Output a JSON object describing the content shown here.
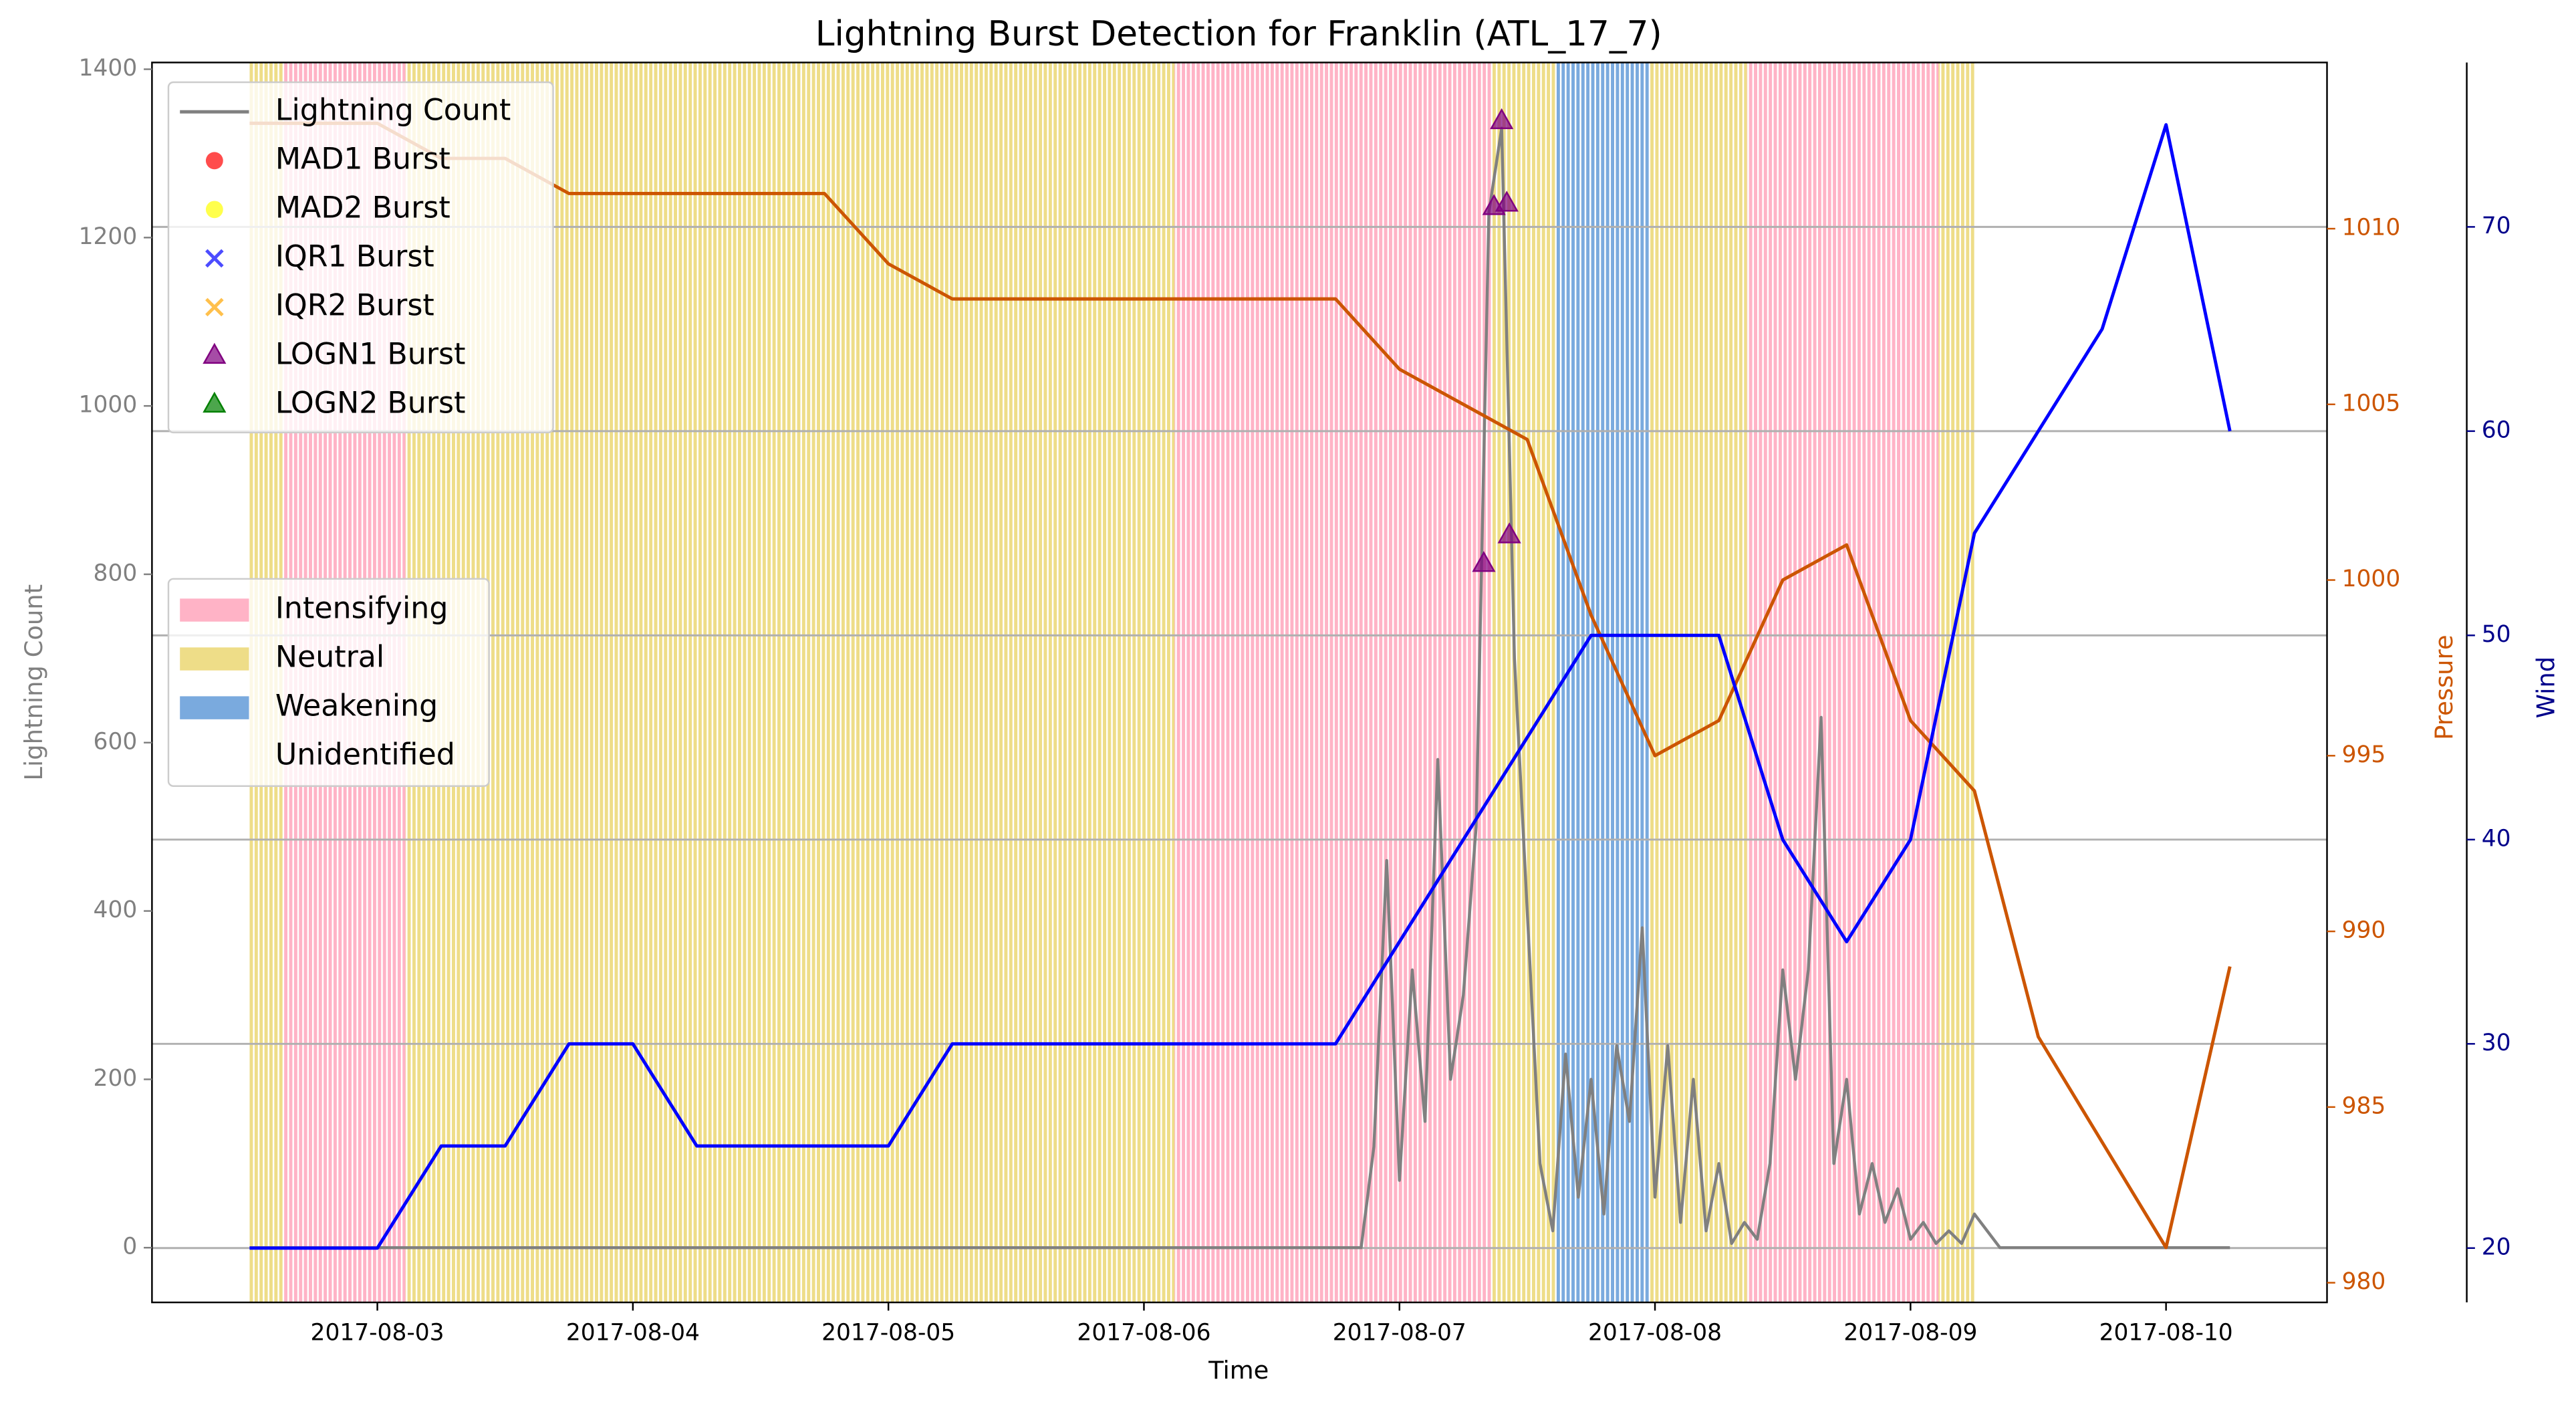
{
  "chart_data": {
    "type": "line",
    "title": "Lightning Burst Detection for Franklin (ATL_17_7)",
    "xlabel": "Time",
    "ylabel": "Lightning Count",
    "y2label": "Pressure",
    "y3label": "Wind",
    "xlim": [
      2.118,
      10.63
    ],
    "xticks": [
      {
        "value": 3,
        "label": "2017-08-03"
      },
      {
        "value": 4,
        "label": "2017-08-04"
      },
      {
        "value": 5,
        "label": "2017-08-05"
      },
      {
        "value": 6,
        "label": "2017-08-06"
      },
      {
        "value": 7,
        "label": "2017-08-07"
      },
      {
        "value": 8,
        "label": "2017-08-08"
      },
      {
        "value": 9,
        "label": "2017-08-09"
      },
      {
        "value": 10,
        "label": "2017-08-10"
      }
    ],
    "ylim": [
      -65,
      1408
    ],
    "yticks": [
      0,
      200,
      400,
      600,
      800,
      1000,
      1200,
      1400
    ],
    "y2lim": [
      979.44,
      1014.73
    ],
    "y2ticks": [
      980,
      985,
      990,
      995,
      1000,
      1005,
      1010
    ],
    "y3lim": [
      17.34,
      78.05
    ],
    "y3ticks": [
      20,
      30,
      40,
      50,
      60,
      70
    ],
    "grid_axis": "y3",
    "legend": "upper left",
    "phase_legend": "center left",
    "series": [
      {
        "name": "Lightning Count",
        "color": "#808080",
        "axis": "y",
        "x": [
          2.5,
          6.85,
          6.9,
          6.95,
          7.0,
          7.05,
          7.1,
          7.15,
          7.2,
          7.25,
          7.3,
          7.35,
          7.4,
          7.45,
          7.5,
          7.55,
          7.6,
          7.65,
          7.7,
          7.75,
          7.8,
          7.85,
          7.9,
          7.95,
          8.0,
          8.05,
          8.1,
          8.15,
          8.2,
          8.25,
          8.3,
          8.35,
          8.4,
          8.45,
          8.5,
          8.55,
          8.6,
          8.65,
          8.7,
          8.75,
          8.8,
          8.85,
          8.9,
          8.95,
          9.0,
          9.05,
          9.1,
          9.15,
          9.2,
          9.25,
          9.3,
          9.35,
          10.25
        ],
        "values": [
          0,
          0,
          120,
          460,
          80,
          330,
          150,
          580,
          200,
          300,
          500,
          1230,
          1330,
          700,
          400,
          100,
          20,
          230,
          60,
          200,
          40,
          240,
          150,
          380,
          60,
          240,
          30,
          200,
          20,
          100,
          5,
          30,
          10,
          100,
          330,
          200,
          330,
          630,
          100,
          200,
          40,
          100,
          30,
          70,
          10,
          30,
          5,
          20,
          5,
          40,
          20,
          0,
          0
        ]
      },
      {
        "name": "MAD1 Burst",
        "color": "#ff0000",
        "marker": "o",
        "axis": "y",
        "x": [],
        "values": []
      },
      {
        "name": "MAD2 Burst",
        "color": "#ffff00",
        "marker": "o",
        "axis": "y",
        "x": [],
        "values": []
      },
      {
        "name": "IQR1 Burst",
        "color": "#0000ff",
        "marker": "x",
        "axis": "y",
        "x": [],
        "values": []
      },
      {
        "name": "IQR2 Burst",
        "color": "#ffa500",
        "marker": "x",
        "axis": "y",
        "x": [],
        "values": []
      },
      {
        "name": "LOGN1 Burst",
        "color": "#800080",
        "marker": "^",
        "axis": "y",
        "x": [
          7.33,
          7.37,
          7.4,
          7.42,
          7.43
        ],
        "values": [
          812,
          1236,
          1338,
          1240,
          846
        ]
      },
      {
        "name": "LOGN2 Burst",
        "color": "#008000",
        "marker": "^",
        "axis": "y",
        "x": [],
        "values": []
      },
      {
        "color": "#cc5500",
        "axis": "y2",
        "x": [
          2.5,
          2.75,
          3.0,
          3.25,
          3.5,
          3.75,
          4.0,
          4.25,
          4.5,
          4.75,
          5.0,
          5.25,
          5.5,
          5.75,
          6.0,
          6.25,
          6.5,
          6.75,
          7.0,
          7.25,
          7.5,
          7.75,
          8.0,
          8.25,
          8.5,
          8.75,
          9.0,
          9.25,
          9.5,
          9.75,
          10.0,
          10.25
        ],
        "values": [
          1013,
          1013,
          1013,
          1012,
          1012,
          1011,
          1011,
          1011,
          1011,
          1011,
          1009,
          1008,
          1008,
          1008,
          1008,
          1008,
          1008,
          1008,
          1006,
          1005,
          1004,
          999,
          995,
          996,
          1000,
          1001,
          996,
          994,
          987,
          984,
          981,
          989
        ]
      },
      {
        "color": "#0000ff",
        "axis": "y3",
        "x": [
          2.5,
          2.75,
          3.0,
          3.25,
          3.5,
          3.75,
          4.0,
          4.25,
          4.5,
          4.75,
          5.0,
          5.25,
          5.5,
          5.75,
          6.0,
          6.25,
          6.5,
          6.75,
          7.0,
          7.25,
          7.5,
          7.75,
          8.0,
          8.25,
          8.5,
          8.75,
          9.0,
          9.25,
          9.5,
          9.75,
          10.0,
          10.25
        ],
        "values": [
          20,
          20,
          20,
          25,
          25,
          30,
          30,
          25,
          25,
          25,
          25,
          30,
          30,
          30,
          30,
          30,
          30,
          30,
          35,
          40,
          45,
          50,
          50,
          50,
          40,
          35,
          40,
          55,
          60,
          65,
          75,
          60
        ]
      }
    ],
    "phases": [
      {
        "name": "Intensifying",
        "color": "#ffb3c6"
      },
      {
        "name": "Neutral",
        "color": "#eedd88"
      },
      {
        "name": "Weakening",
        "color": "#7aaade"
      },
      {
        "name": "Unidentified",
        "color": "#ffffff"
      }
    ],
    "regions": [
      {
        "start": 2.5,
        "end": 2.63,
        "phase": 1
      },
      {
        "start": 2.63,
        "end": 3.11,
        "phase": 0
      },
      {
        "start": 3.11,
        "end": 6.12,
        "phase": 1
      },
      {
        "start": 6.12,
        "end": 7.36,
        "phase": 0
      },
      {
        "start": 7.36,
        "end": 7.61,
        "phase": 1
      },
      {
        "start": 7.61,
        "end": 7.98,
        "phase": 2
      },
      {
        "start": 7.98,
        "end": 8.36,
        "phase": 1
      },
      {
        "start": 8.36,
        "end": 9.11,
        "phase": 0
      },
      {
        "start": 9.11,
        "end": 9.25,
        "phase": 1
      }
    ]
  }
}
